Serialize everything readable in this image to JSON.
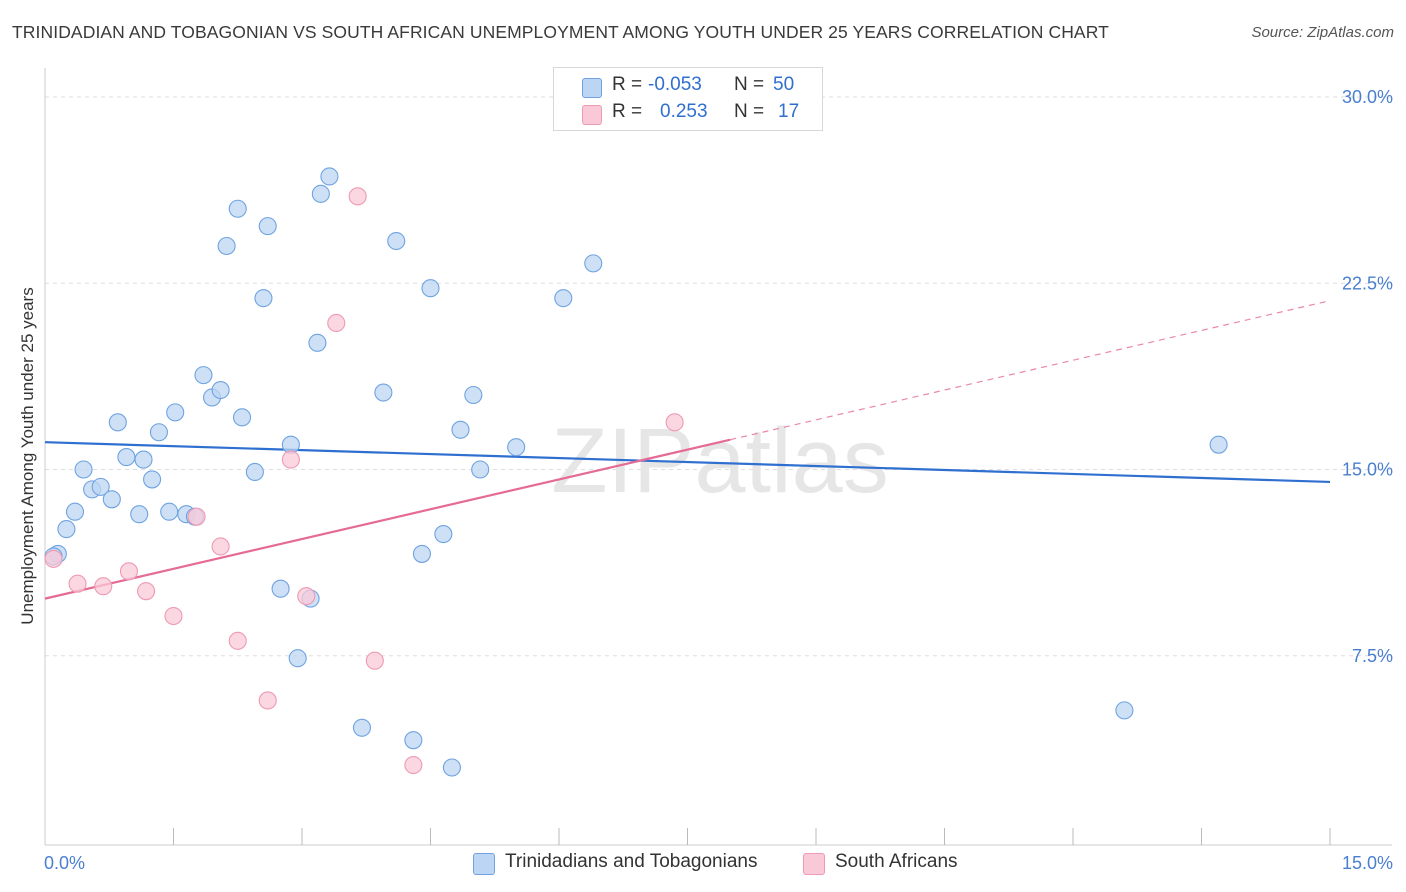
{
  "title": "TRINIDADIAN AND TOBAGONIAN VS SOUTH AFRICAN UNEMPLOYMENT AMONG YOUTH UNDER 25 YEARS CORRELATION CHART",
  "source": "Source: ZipAtlas.com",
  "watermark": "ZIPatlas",
  "legend": {
    "rows": [
      {
        "r_label": "R =",
        "r_value": "-0.053",
        "n_label": "N =",
        "n_value": "50",
        "color": "#a9c8ef"
      },
      {
        "r_label": "R =",
        "r_value": "0.253",
        "n_label": "N =",
        "n_value": "17",
        "color": "#f5b6c9"
      }
    ]
  },
  "bottom_legend": [
    {
      "label": "Trinidadians and Tobagonians",
      "color": "#a9c8ef"
    },
    {
      "label": "South Africans",
      "color": "#f5b6c9"
    }
  ],
  "chart_data": {
    "type": "scatter",
    "title": "TRINIDADIAN AND TOBAGONIAN VS SOUTH AFRICAN UNEMPLOYMENT AMONG YOUTH UNDER 25 YEARS CORRELATION CHART",
    "xlabel": "",
    "ylabel": "Unemployment Among Youth under 25 years",
    "xlim": [
      0,
      15
    ],
    "ylim": [
      0,
      30
    ],
    "x_tick_labels": [
      "0.0%",
      "15.0%"
    ],
    "y_ticks": [
      7.5,
      15.0,
      22.5,
      30.0
    ],
    "y_tick_labels": [
      "7.5%",
      "15.0%",
      "22.5%",
      "30.0%"
    ],
    "grid": "horizontal dashed",
    "legend_position": "top-center",
    "series": [
      {
        "name": "Trinidadians and Tobagonians",
        "color": "#6fa3e0",
        "fill": "#bcd5f3",
        "trend": {
          "x": [
            0,
            15
          ],
          "y": [
            16.1,
            14.5
          ],
          "style": "solid",
          "color": "#2f6fd0"
        },
        "points": [
          [
            0.15,
            11.6
          ],
          [
            0.25,
            12.6
          ],
          [
            0.35,
            13.3
          ],
          [
            0.45,
            15.0
          ],
          [
            0.55,
            14.2
          ],
          [
            0.65,
            14.3
          ],
          [
            0.78,
            13.8
          ],
          [
            0.85,
            16.9
          ],
          [
            0.95,
            15.5
          ],
          [
            1.1,
            13.2
          ],
          [
            1.15,
            15.4
          ],
          [
            1.25,
            14.6
          ],
          [
            1.33,
            16.5
          ],
          [
            1.45,
            13.3
          ],
          [
            1.52,
            17.3
          ],
          [
            1.65,
            13.2
          ],
          [
            1.75,
            13.1
          ],
          [
            1.85,
            18.8
          ],
          [
            1.95,
            17.9
          ],
          [
            2.05,
            18.2
          ],
          [
            2.12,
            24.0
          ],
          [
            2.25,
            25.5
          ],
          [
            2.3,
            17.1
          ],
          [
            2.45,
            14.9
          ],
          [
            2.55,
            21.9
          ],
          [
            2.6,
            24.8
          ],
          [
            2.75,
            10.2
          ],
          [
            2.87,
            16.0
          ],
          [
            2.95,
            7.4
          ],
          [
            3.1,
            9.8
          ],
          [
            3.18,
            20.1
          ],
          [
            3.22,
            26.1
          ],
          [
            3.32,
            26.8
          ],
          [
            3.7,
            4.6
          ],
          [
            3.95,
            18.1
          ],
          [
            4.1,
            24.2
          ],
          [
            4.3,
            4.1
          ],
          [
            4.4,
            11.6
          ],
          [
            4.5,
            22.3
          ],
          [
            4.65,
            12.4
          ],
          [
            4.75,
            3.0
          ],
          [
            4.85,
            16.6
          ],
          [
            5.0,
            18.0
          ],
          [
            5.08,
            15.0
          ],
          [
            5.5,
            15.9
          ],
          [
            6.05,
            21.9
          ],
          [
            6.4,
            23.3
          ],
          [
            12.6,
            5.3
          ],
          [
            13.7,
            16.0
          ],
          [
            0.1,
            11.5
          ]
        ]
      },
      {
        "name": "South Africans",
        "color": "#ee9ab4",
        "fill": "#f9c9d8",
        "trend": {
          "x": [
            0,
            8.0
          ],
          "y": [
            9.8,
            16.2
          ],
          "style": "solid",
          "color": "#e56b94",
          "extended": {
            "x": [
              8.0,
              15
            ],
            "y": [
              16.2,
              21.8
            ],
            "style": "dashed"
          }
        },
        "points": [
          [
            0.1,
            11.4
          ],
          [
            0.38,
            10.4
          ],
          [
            0.68,
            10.3
          ],
          [
            0.98,
            10.9
          ],
          [
            1.18,
            10.1
          ],
          [
            1.5,
            9.1
          ],
          [
            1.77,
            13.1
          ],
          [
            2.05,
            11.9
          ],
          [
            2.25,
            8.1
          ],
          [
            2.6,
            5.7
          ],
          [
            2.87,
            15.4
          ],
          [
            3.05,
            9.9
          ],
          [
            3.4,
            20.9
          ],
          [
            3.65,
            26.0
          ],
          [
            3.85,
            7.3
          ],
          [
            4.3,
            3.1
          ],
          [
            7.35,
            16.9
          ]
        ]
      }
    ]
  }
}
